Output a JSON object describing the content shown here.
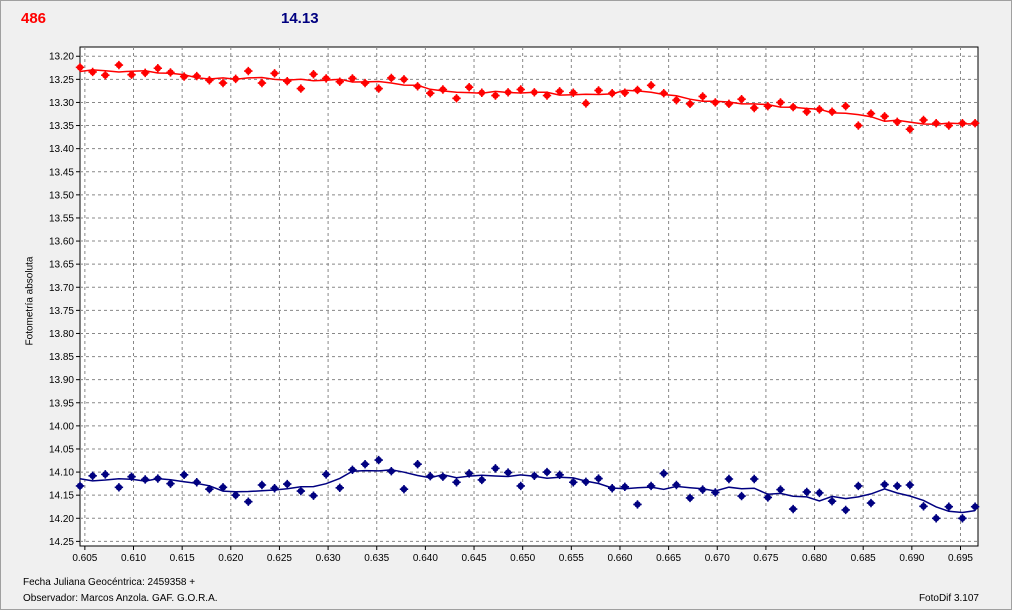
{
  "header": {
    "red_value": "486",
    "blue_value": "14.13"
  },
  "footer": {
    "date_label": "Fecha Juliana Geocéntrica: 2459358 +",
    "observer": "Observador:  Marcos Anzola. GAF. G.O.R.A.",
    "software": "FotoDif 3.107"
  },
  "colors": {
    "red": "#ff0000",
    "blue": "#000080",
    "grid": "#888888",
    "plot_bg": "#ffffff"
  },
  "chart_data": {
    "type": "scatter",
    "ylabel": "Fotometría absoluta",
    "xlabel": "",
    "xlim": [
      0.6045,
      0.6968
    ],
    "ylim": [
      14.26,
      13.18
    ],
    "y_inverted": true,
    "grid": true,
    "xticks": [
      "0.605",
      "0.610",
      "0.615",
      "0.620",
      "0.625",
      "0.630",
      "0.635",
      "0.640",
      "0.645",
      "0.650",
      "0.655",
      "0.660",
      "0.665",
      "0.670",
      "0.675",
      "0.680",
      "0.685",
      "0.690",
      "0.695"
    ],
    "yticks": [
      "13.20",
      "13.25",
      "13.30",
      "13.35",
      "13.40",
      "13.45",
      "13.50",
      "13.55",
      "13.60",
      "13.65",
      "13.70",
      "13.75",
      "13.80",
      "13.85",
      "13.90",
      "13.95",
      "14.00",
      "14.05",
      "14.10",
      "14.15",
      "14.20",
      "14.25"
    ],
    "series": [
      {
        "color": "#ff0000",
        "x": [
          0.6045,
          0.6058,
          0.6071,
          0.6085,
          0.6098,
          0.6112,
          0.6125,
          0.6138,
          0.6152,
          0.6165,
          0.6178,
          0.6192,
          0.6205,
          0.6218,
          0.6232,
          0.6245,
          0.6258,
          0.6272,
          0.6285,
          0.6298,
          0.6312,
          0.6325,
          0.6338,
          0.6352,
          0.6365,
          0.6378,
          0.6392,
          0.6405,
          0.6418,
          0.6432,
          0.6445,
          0.6458,
          0.6472,
          0.6485,
          0.6498,
          0.6512,
          0.6525,
          0.6538,
          0.6552,
          0.6565,
          0.6578,
          0.6592,
          0.6605,
          0.6618,
          0.6632,
          0.6645,
          0.6658,
          0.6672,
          0.6685,
          0.6698,
          0.6712,
          0.6725,
          0.6738,
          0.6752,
          0.6765,
          0.6778,
          0.6792,
          0.6805,
          0.6818,
          0.6832,
          0.6845,
          0.6858,
          0.6872,
          0.6885,
          0.6898,
          0.6912,
          0.6925,
          0.6938,
          0.6952,
          0.6965
        ],
        "y": [
          13.224,
          13.234,
          13.241,
          13.219,
          13.24,
          13.236,
          13.226,
          13.235,
          13.244,
          13.243,
          13.252,
          13.258,
          13.249,
          13.232,
          13.258,
          13.237,
          13.254,
          13.27,
          13.239,
          13.248,
          13.255,
          13.248,
          13.258,
          13.27,
          13.247,
          13.25,
          13.265,
          13.28,
          13.272,
          13.291,
          13.267,
          13.279,
          13.285,
          13.278,
          13.272,
          13.278,
          13.285,
          13.276,
          13.279,
          13.302,
          13.274,
          13.28,
          13.279,
          13.273,
          13.263,
          13.28,
          13.295,
          13.303,
          13.287,
          13.3,
          13.303,
          13.293,
          13.312,
          13.308,
          13.3,
          13.31,
          13.32,
          13.315,
          13.32,
          13.308,
          13.35,
          13.324,
          13.33,
          13.342,
          13.358,
          13.338,
          13.345,
          13.35,
          13.345,
          13.345
        ]
      },
      {
        "color": "#000080",
        "x": [
          0.6045,
          0.6058,
          0.6071,
          0.6085,
          0.6098,
          0.6112,
          0.6125,
          0.6138,
          0.6152,
          0.6165,
          0.6178,
          0.6192,
          0.6205,
          0.6218,
          0.6232,
          0.6245,
          0.6258,
          0.6272,
          0.6285,
          0.6298,
          0.6312,
          0.6325,
          0.6338,
          0.6352,
          0.6365,
          0.6378,
          0.6392,
          0.6405,
          0.6418,
          0.6432,
          0.6445,
          0.6458,
          0.6472,
          0.6485,
          0.6498,
          0.6512,
          0.6525,
          0.6538,
          0.6552,
          0.6565,
          0.6578,
          0.6592,
          0.6605,
          0.6618,
          0.6632,
          0.6645,
          0.6658,
          0.6672,
          0.6685,
          0.6698,
          0.6712,
          0.6725,
          0.6738,
          0.6752,
          0.6765,
          0.6778,
          0.6792,
          0.6805,
          0.6818,
          0.6832,
          0.6845,
          0.6858,
          0.6872,
          0.6885,
          0.6898,
          0.6912,
          0.6925,
          0.6938,
          0.6952,
          0.6965
        ],
        "y": [
          14.13,
          14.108,
          14.105,
          14.133,
          14.11,
          14.116,
          14.114,
          14.125,
          14.106,
          14.122,
          14.137,
          14.133,
          14.15,
          14.164,
          14.128,
          14.135,
          14.126,
          14.141,
          14.151,
          14.105,
          14.134,
          14.095,
          14.083,
          14.074,
          14.098,
          14.137,
          14.083,
          14.109,
          14.11,
          14.122,
          14.103,
          14.117,
          14.092,
          14.101,
          14.13,
          14.108,
          14.1,
          14.106,
          14.122,
          14.121,
          14.114,
          14.135,
          14.132,
          14.17,
          14.13,
          14.103,
          14.128,
          14.156,
          14.138,
          14.144,
          14.115,
          14.152,
          14.115,
          14.155,
          14.138,
          14.18,
          14.143,
          14.145,
          14.163,
          14.182,
          14.13,
          14.167,
          14.127,
          14.13,
          14.128,
          14.174,
          14.2,
          14.175,
          14.2,
          14.175
        ]
      }
    ]
  }
}
